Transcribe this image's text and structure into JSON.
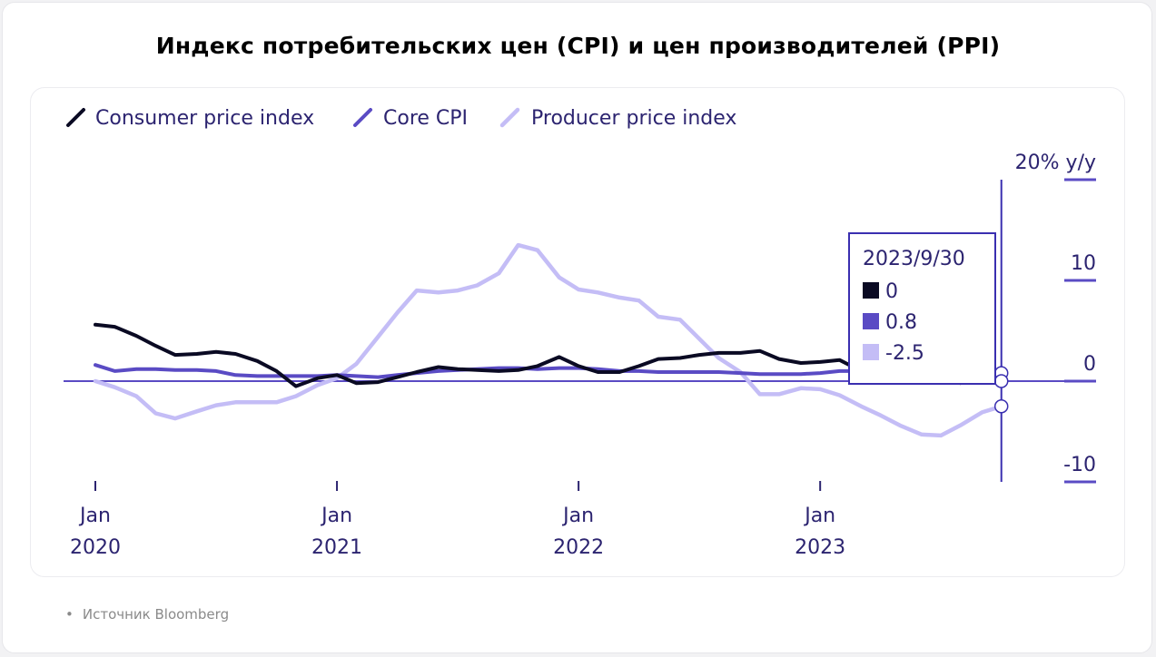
{
  "title": "Индекс потребительских цен (CPI) и цен производителей (PPI)",
  "source": {
    "bullet": "•",
    "text": "Источник Bloomberg"
  },
  "tooltip": {
    "date": "2023/9/30",
    "items": [
      {
        "label": "0",
        "color": "#0a0a23"
      },
      {
        "label": "0.8",
        "color": "#5a4bc4"
      },
      {
        "label": "-2.5",
        "color": "#c4bdf6"
      }
    ]
  },
  "chart_data": {
    "type": "line",
    "ylabel": "20% y/y",
    "ylim": [
      -10,
      20
    ],
    "yticks": [
      20,
      10,
      0,
      -10
    ],
    "ytick_labels": [
      "20% y/y",
      "10",
      "0",
      "-10"
    ],
    "xlim": [
      2020.0,
      2023.83
    ],
    "xticks": [
      {
        "x": 2020.0,
        "label1": "Jan",
        "label2": "2020"
      },
      {
        "x": 2021.0,
        "label1": "Jan",
        "label2": "2021"
      },
      {
        "x": 2022.0,
        "label1": "Jan",
        "label2": "2022"
      },
      {
        "x": 2023.0,
        "label1": "Jan",
        "label2": "2023"
      }
    ],
    "legend": "top-left",
    "grid": false,
    "cursor_x": 2023.75,
    "series": [
      {
        "name": "Consumer price index",
        "color": "#0a0a23",
        "width": 4,
        "points": [
          [
            2020.0,
            5.6
          ],
          [
            2020.08,
            5.4
          ],
          [
            2020.17,
            4.5
          ],
          [
            2020.25,
            3.5
          ],
          [
            2020.33,
            2.6
          ],
          [
            2020.42,
            2.7
          ],
          [
            2020.5,
            2.9
          ],
          [
            2020.58,
            2.7
          ],
          [
            2020.67,
            2.0
          ],
          [
            2020.75,
            1.0
          ],
          [
            2020.83,
            -0.5
          ],
          [
            2020.92,
            0.3
          ],
          [
            2021.0,
            0.6
          ],
          [
            2021.08,
            -0.2
          ],
          [
            2021.17,
            -0.1
          ],
          [
            2021.25,
            0.4
          ],
          [
            2021.33,
            0.9
          ],
          [
            2021.42,
            1.4
          ],
          [
            2021.5,
            1.2
          ],
          [
            2021.58,
            1.1
          ],
          [
            2021.67,
            1.0
          ],
          [
            2021.75,
            1.1
          ],
          [
            2021.83,
            1.5
          ],
          [
            2021.92,
            2.4
          ],
          [
            2022.0,
            1.5
          ],
          [
            2022.08,
            0.9
          ],
          [
            2022.17,
            0.9
          ],
          [
            2022.25,
            1.5
          ],
          [
            2022.33,
            2.2
          ],
          [
            2022.42,
            2.3
          ],
          [
            2022.5,
            2.6
          ],
          [
            2022.58,
            2.8
          ],
          [
            2022.67,
            2.8
          ],
          [
            2022.75,
            3.0
          ],
          [
            2022.83,
            2.2
          ],
          [
            2022.92,
            1.8
          ],
          [
            2023.0,
            1.9
          ],
          [
            2023.08,
            2.1
          ],
          [
            2023.17,
            1.0
          ],
          [
            2023.25,
            0.6
          ],
          [
            2023.33,
            0.3
          ],
          [
            2023.42,
            0.2
          ],
          [
            2023.5,
            0.1
          ],
          [
            2023.58,
            -0.2
          ],
          [
            2023.67,
            0.1
          ],
          [
            2023.75,
            0.0
          ]
        ]
      },
      {
        "name": "Core CPI",
        "color": "#5a4bc4",
        "width": 4,
        "points": [
          [
            2020.0,
            1.6
          ],
          [
            2020.08,
            1.0
          ],
          [
            2020.17,
            1.2
          ],
          [
            2020.25,
            1.2
          ],
          [
            2020.33,
            1.1
          ],
          [
            2020.42,
            1.1
          ],
          [
            2020.5,
            1.0
          ],
          [
            2020.58,
            0.6
          ],
          [
            2020.67,
            0.5
          ],
          [
            2020.75,
            0.5
          ],
          [
            2020.83,
            0.5
          ],
          [
            2020.92,
            0.5
          ],
          [
            2021.0,
            0.6
          ],
          [
            2021.08,
            0.5
          ],
          [
            2021.17,
            0.4
          ],
          [
            2021.25,
            0.6
          ],
          [
            2021.33,
            0.8
          ],
          [
            2021.42,
            1.0
          ],
          [
            2021.5,
            1.1
          ],
          [
            2021.58,
            1.2
          ],
          [
            2021.67,
            1.3
          ],
          [
            2021.75,
            1.3
          ],
          [
            2021.83,
            1.2
          ],
          [
            2021.92,
            1.3
          ],
          [
            2022.0,
            1.3
          ],
          [
            2022.08,
            1.2
          ],
          [
            2022.17,
            1.0
          ],
          [
            2022.25,
            1.0
          ],
          [
            2022.33,
            0.9
          ],
          [
            2022.42,
            0.9
          ],
          [
            2022.5,
            0.9
          ],
          [
            2022.58,
            0.9
          ],
          [
            2022.67,
            0.8
          ],
          [
            2022.75,
            0.7
          ],
          [
            2022.83,
            0.7
          ],
          [
            2022.92,
            0.7
          ],
          [
            2023.0,
            0.8
          ],
          [
            2023.08,
            1.0
          ],
          [
            2023.17,
            1.0
          ],
          [
            2023.25,
            1.0
          ],
          [
            2023.33,
            0.9
          ],
          [
            2023.42,
            0.9
          ],
          [
            2023.5,
            0.9
          ],
          [
            2023.58,
            0.8
          ],
          [
            2023.67,
            0.8
          ],
          [
            2023.75,
            0.8
          ]
        ]
      },
      {
        "name": "Producer price index",
        "color": "#c4bdf6",
        "width": 4.5,
        "points": [
          [
            2020.0,
            0.0
          ],
          [
            2020.08,
            -0.6
          ],
          [
            2020.17,
            -1.5
          ],
          [
            2020.25,
            -3.2
          ],
          [
            2020.33,
            -3.7
          ],
          [
            2020.42,
            -3.0
          ],
          [
            2020.5,
            -2.4
          ],
          [
            2020.58,
            -2.1
          ],
          [
            2020.67,
            -2.1
          ],
          [
            2020.75,
            -2.1
          ],
          [
            2020.83,
            -1.5
          ],
          [
            2020.92,
            -0.4
          ],
          [
            2021.0,
            0.3
          ],
          [
            2021.08,
            1.7
          ],
          [
            2021.17,
            4.4
          ],
          [
            2021.25,
            6.8
          ],
          [
            2021.33,
            9.0
          ],
          [
            2021.42,
            8.8
          ],
          [
            2021.5,
            9.0
          ],
          [
            2021.58,
            9.5
          ],
          [
            2021.67,
            10.7
          ],
          [
            2021.75,
            13.5
          ],
          [
            2021.83,
            13.0
          ],
          [
            2021.92,
            10.3
          ],
          [
            2022.0,
            9.1
          ],
          [
            2022.08,
            8.8
          ],
          [
            2022.17,
            8.3
          ],
          [
            2022.25,
            8.0
          ],
          [
            2022.33,
            6.4
          ],
          [
            2022.42,
            6.1
          ],
          [
            2022.5,
            4.2
          ],
          [
            2022.58,
            2.3
          ],
          [
            2022.67,
            0.9
          ],
          [
            2022.75,
            -1.3
          ],
          [
            2022.83,
            -1.3
          ],
          [
            2022.92,
            -0.7
          ],
          [
            2023.0,
            -0.8
          ],
          [
            2023.08,
            -1.4
          ],
          [
            2023.17,
            -2.5
          ],
          [
            2023.25,
            -3.4
          ],
          [
            2023.33,
            -4.4
          ],
          [
            2023.42,
            -5.3
          ],
          [
            2023.5,
            -5.4
          ],
          [
            2023.58,
            -4.4
          ],
          [
            2023.67,
            -3.1
          ],
          [
            2023.75,
            -2.5
          ]
        ]
      }
    ]
  }
}
